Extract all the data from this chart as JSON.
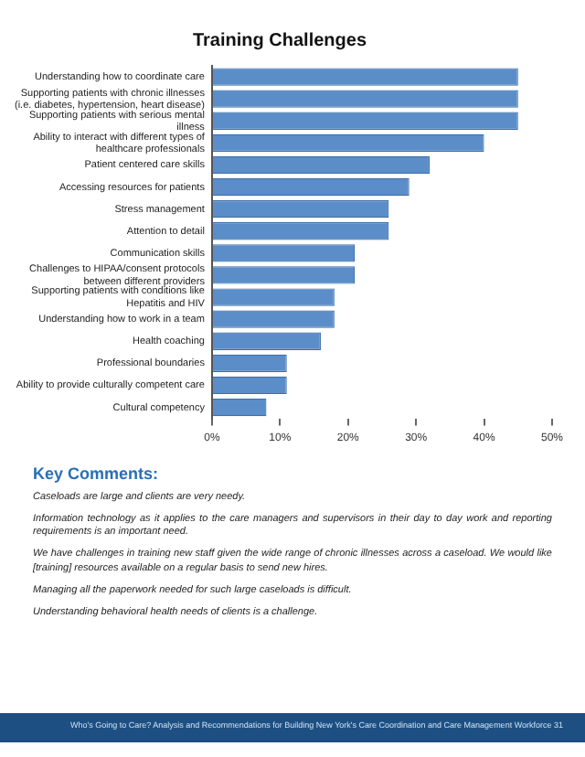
{
  "chart_data": {
    "type": "bar",
    "orientation": "horizontal",
    "title": "Training Challenges",
    "categories": [
      "Understanding how to coordinate care",
      "Supporting patients with chronic illnesses (i.e. diabetes, hypertension, heart disease)",
      "Supporting patients with serious mental illness",
      "Ability to interact with different types of healthcare professionals",
      "Patient centered care skills",
      "Accessing resources for patients",
      "Stress management",
      "Attention to detail",
      "Communication skills",
      "Challenges to HIPAA/consent protocols between different providers",
      "Supporting patients with conditions like Hepatitis and HIV",
      "Understanding how to work in a team",
      "Health coaching",
      "Professional boundaries",
      "Ability to provide culturally competent care",
      "Cultural competency"
    ],
    "values": [
      45,
      45,
      45,
      40,
      32,
      29,
      26,
      26,
      21,
      21,
      18,
      18,
      16,
      11,
      11,
      8
    ],
    "color": "#5b8ec9",
    "xlim": [
      0,
      50
    ],
    "xticks": [
      {
        "value": 0,
        "label": "0%"
      },
      {
        "value": 10,
        "label": "10%"
      },
      {
        "value": 20,
        "label": "20%"
      },
      {
        "value": 30,
        "label": "30%"
      },
      {
        "value": 40,
        "label": "40%"
      },
      {
        "value": 50,
        "label": "50%"
      }
    ],
    "grid": false,
    "annotations": [
      "Key Comments:",
      "Caseloads are large and clients are very needy.",
      "Information technology as it applies to the care managers and supervisors in their day to day work and reporting requirements is an important need.",
      "We have challenges in training new staff given the wide range of chronic illnesses across a caseload. We would like [training] resources available on a regular basis to send new hires.",
      "Managing all the paperwork needed for such large caseloads is difficult.",
      "Understanding behavioral health needs of clients is a challenge.",
      "Who's Going to Care? Analysis and Recommendations for Building New York's Care Coordination and Care Management Workforce 31"
    ]
  }
}
